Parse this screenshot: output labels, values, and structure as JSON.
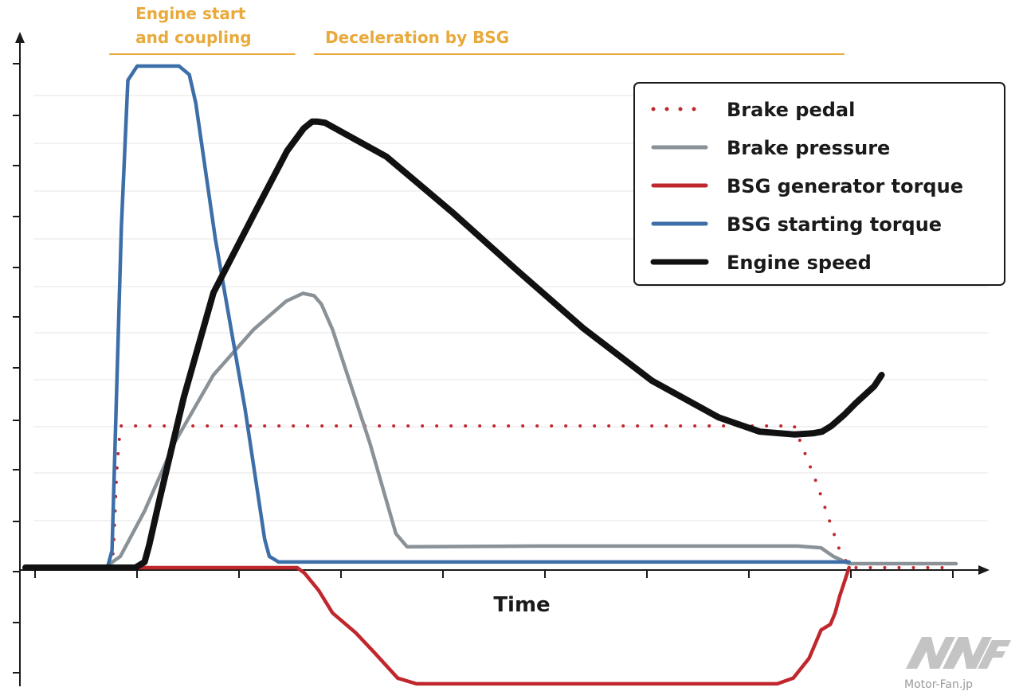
{
  "chart_data": {
    "type": "line",
    "title": "",
    "xlabel": "Time",
    "ylabel": "",
    "xlim": [
      0,
      100
    ],
    "ylim": [
      -25,
      100
    ],
    "grid": true,
    "legend_position": "top-right",
    "phases": [
      {
        "label_lines": [
          "Engine start",
          "and coupling"
        ],
        "x_range": [
          9,
          29
        ]
      },
      {
        "label_lines": [
          "Deceleration by BSG"
        ],
        "x_range": [
          31,
          88
        ]
      }
    ],
    "series": [
      {
        "name": "Brake pedal",
        "style": "dotted",
        "color": "#c0272d",
        "x": [
          0,
          9.3,
          9.5,
          9.8,
          10.2,
          10.5,
          82.6,
          85.0,
          87.5,
          88.6,
          100
        ],
        "y": [
          0,
          0,
          5,
          17,
          25,
          25,
          25,
          15,
          3,
          0,
          0
        ]
      },
      {
        "name": "Brake pressure",
        "style": "solid",
        "color": "#8a9298",
        "x": [
          0,
          8.5,
          10.2,
          12.8,
          16.0,
          20.2,
          24.5,
          28.0,
          29.8,
          31.0,
          31.8,
          33.0,
          37.0,
          39.8,
          41.0,
          55,
          70,
          83.0,
          85.5,
          86.8,
          88.5,
          100
        ],
        "y": [
          0,
          0,
          2,
          10,
          22,
          34,
          42,
          47,
          48.4,
          48,
          46.5,
          42,
          22,
          6,
          3.7,
          3.8,
          3.8,
          3.8,
          3.5,
          2,
          0.7,
          0.7
        ]
      },
      {
        "name": "BSG generator torque",
        "style": "solid",
        "color": "#c0272d",
        "x": [
          0,
          13.4,
          16.0,
          20.0,
          29.2,
          30.0,
          31.5,
          33.0,
          35.5,
          37.5,
          40.0,
          42.0,
          55,
          70,
          80.8,
          82.5,
          84.2,
          85.5,
          86.5,
          87.0,
          87.5,
          87.9,
          88.5
        ],
        "y": [
          0,
          0,
          0,
          0,
          0,
          -1,
          -4,
          -8,
          -11.5,
          -15,
          -19.5,
          -20.5,
          -20.5,
          -20.5,
          -20.5,
          -19.5,
          -16,
          -11,
          -10,
          -8,
          -5,
          -3,
          0
        ]
      },
      {
        "name": "BSG starting torque",
        "style": "solid",
        "color": "#3c6ea8",
        "x": [
          0,
          8.8,
          9.3,
          10.3,
          11.0,
          12.0,
          16.5,
          17.6,
          18.3,
          20.4,
          23.6,
          25.7,
          26.2,
          27.2,
          40,
          60,
          80,
          88.5
        ],
        "y": [
          0,
          0,
          3,
          60,
          86,
          88.5,
          88.5,
          87,
          82,
          58,
          28,
          5,
          2,
          1,
          1,
          1,
          1,
          1
        ]
      },
      {
        "name": "Engine speed",
        "style": "solid",
        "color": "#111111",
        "x": [
          0,
          9.3,
          11.8,
          12.8,
          13.3,
          14.4,
          17.0,
          20.2,
          24.6,
          28.1,
          29.9,
          30.8,
          31.4,
          32.2,
          38.8,
          45.8,
          52.8,
          59.9,
          67.3,
          74.5,
          78.9,
          82.6,
          84.6,
          85.6,
          86.6,
          88.0,
          89.2,
          91.2,
          92.0
        ],
        "y": [
          0,
          0,
          0,
          1,
          4,
          12,
          30,
          48.5,
          62.5,
          73.5,
          77.5,
          78.7,
          78.7,
          78.5,
          72.5,
          62.8,
          52.5,
          42.3,
          33,
          26.5,
          24,
          23.5,
          23.7,
          24,
          25,
          27,
          29,
          32,
          34
        ]
      }
    ]
  },
  "watermark": {
    "logo": "MFF",
    "site": "Motor-Fan.jp"
  }
}
